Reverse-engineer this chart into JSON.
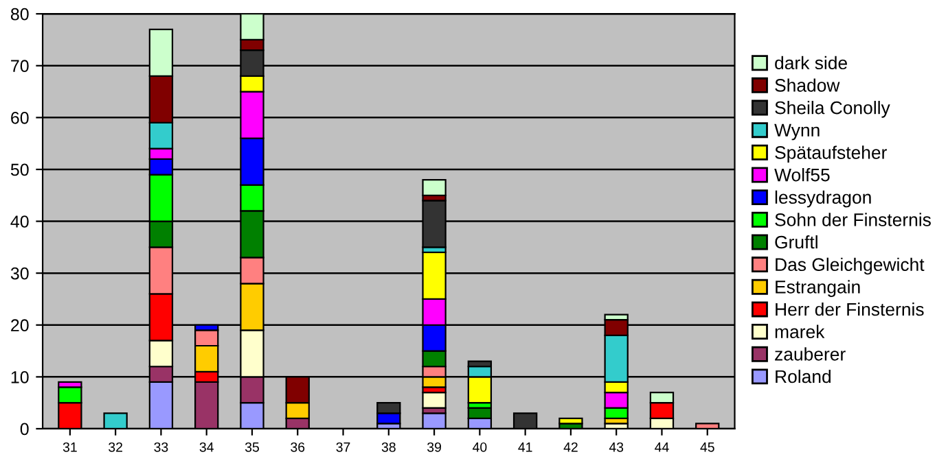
{
  "chart_data": {
    "type": "bar",
    "stacked": true,
    "categories": [
      "31",
      "32",
      "33",
      "34",
      "35",
      "36",
      "37",
      "38",
      "39",
      "40",
      "41",
      "42",
      "43",
      "44",
      "45"
    ],
    "series": [
      {
        "name": "Roland",
        "color": "#9999ff",
        "values": [
          null,
          null,
          9,
          null,
          5,
          null,
          null,
          1,
          3,
          2,
          null,
          null,
          null,
          null,
          null
        ]
      },
      {
        "name": "zauberer",
        "color": "#993366",
        "values": [
          null,
          null,
          3,
          9,
          5,
          2,
          null,
          null,
          1,
          null,
          null,
          null,
          null,
          null,
          null
        ]
      },
      {
        "name": "marek",
        "color": "#ffffcc",
        "values": [
          null,
          null,
          5,
          null,
          9,
          null,
          null,
          null,
          3,
          null,
          null,
          null,
          1,
          2,
          null
        ]
      },
      {
        "name": "Herr der Finsternis",
        "color": "#ff0000",
        "values": [
          5,
          null,
          9,
          2,
          null,
          null,
          null,
          null,
          1,
          null,
          null,
          null,
          null,
          3,
          null
        ]
      },
      {
        "name": "Estrangain",
        "color": "#ffcc00",
        "values": [
          null,
          null,
          null,
          5,
          9,
          3,
          null,
          null,
          2,
          null,
          null,
          null,
          1,
          null,
          null
        ]
      },
      {
        "name": "Das Gleichgewicht",
        "color": "#ff8080",
        "values": [
          null,
          null,
          9,
          3,
          5,
          null,
          null,
          null,
          2,
          null,
          null,
          null,
          null,
          null,
          1
        ]
      },
      {
        "name": "Gruftl",
        "color": "#008000",
        "values": [
          null,
          null,
          5,
          null,
          9,
          null,
          null,
          null,
          3,
          2,
          null,
          1,
          null,
          null,
          null
        ]
      },
      {
        "name": "Sohn der Finsternis",
        "color": "#00ff00",
        "values": [
          3,
          null,
          9,
          null,
          5,
          null,
          null,
          null,
          null,
          1,
          null,
          null,
          2,
          null,
          null
        ]
      },
      {
        "name": "lessydragon",
        "color": "#0000ff",
        "values": [
          null,
          null,
          3,
          1,
          9,
          null,
          null,
          2,
          5,
          null,
          null,
          null,
          null,
          null,
          null
        ]
      },
      {
        "name": "Wolf55",
        "color": "#ff00ff",
        "values": [
          1,
          null,
          2,
          null,
          9,
          null,
          null,
          null,
          5,
          null,
          null,
          null,
          3,
          null,
          null
        ]
      },
      {
        "name": "Spätaufsteher",
        "color": "#ffff00",
        "values": [
          null,
          null,
          null,
          null,
          3,
          null,
          null,
          null,
          9,
          5,
          null,
          1,
          2,
          null,
          null
        ]
      },
      {
        "name": "Wynn",
        "color": "#33cccc",
        "values": [
          null,
          3,
          5,
          null,
          null,
          null,
          null,
          null,
          1,
          2,
          null,
          null,
          9,
          null,
          null
        ]
      },
      {
        "name": "Sheila Conolly",
        "color": "#333333",
        "values": [
          null,
          null,
          null,
          null,
          5,
          null,
          null,
          2,
          9,
          1,
          3,
          null,
          null,
          null,
          null
        ]
      },
      {
        "name": "Shadow",
        "color": "#800000",
        "values": [
          null,
          null,
          9,
          null,
          2,
          5,
          null,
          null,
          1,
          null,
          null,
          null,
          3,
          null,
          null
        ]
      },
      {
        "name": "dark side",
        "color": "#ccffcc",
        "values": [
          null,
          null,
          9,
          null,
          5,
          null,
          null,
          null,
          3,
          null,
          null,
          null,
          1,
          2,
          null
        ]
      }
    ],
    "ylim": [
      0,
      80
    ],
    "yticks": [
      0,
      10,
      20,
      30,
      40,
      50,
      60,
      70,
      80
    ],
    "grid": "y",
    "legend": "right"
  }
}
